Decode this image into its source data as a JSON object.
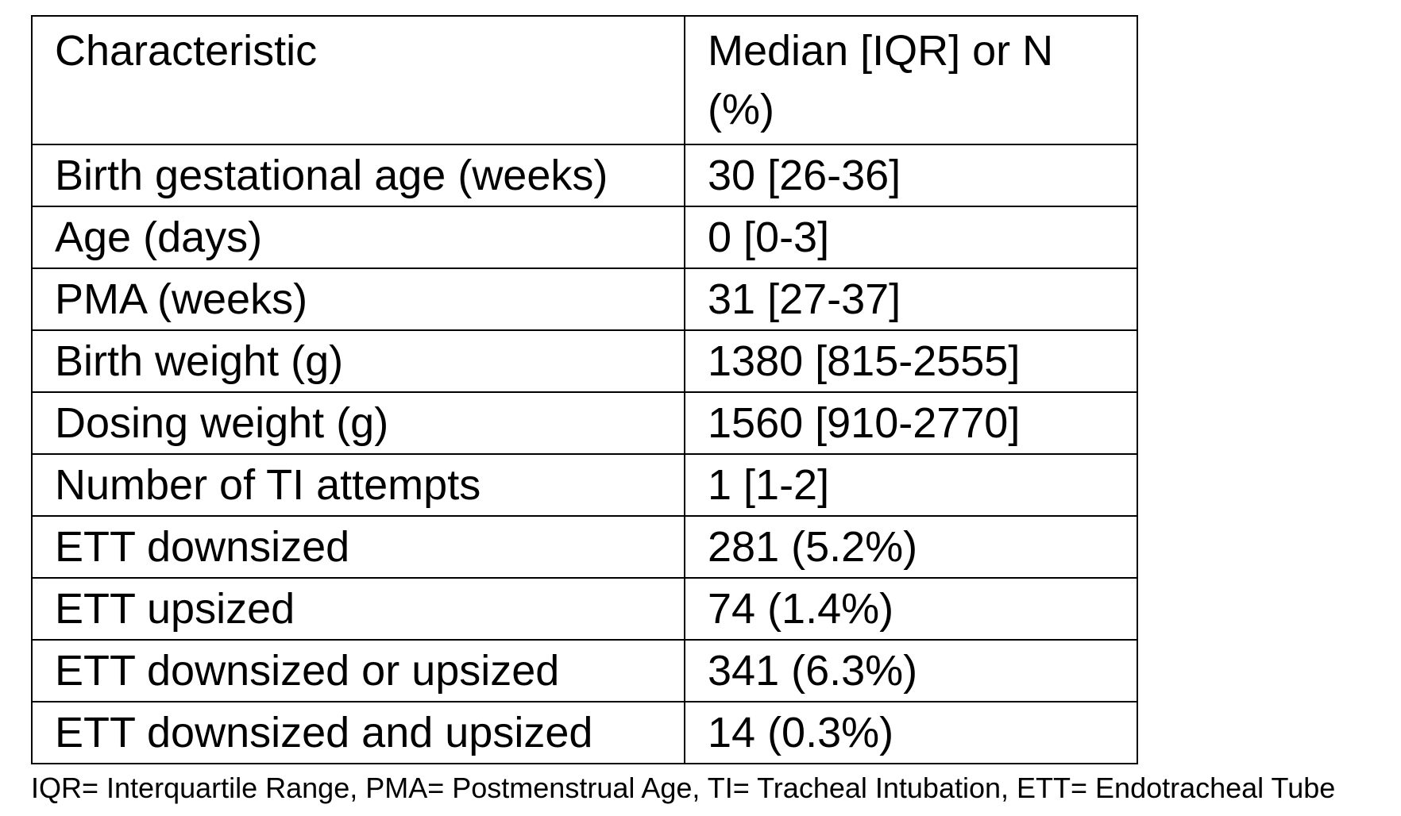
{
  "table": {
    "headers": [
      "Characteristic",
      "Median [IQR] or N (%)"
    ],
    "rows": [
      [
        "Birth gestational age (weeks)",
        "30 [26-36]"
      ],
      [
        "Age (days)",
        "0 [0-3]"
      ],
      [
        "PMA (weeks)",
        "31 [27-37]"
      ],
      [
        "Birth weight (g)",
        "1380 [815-2555]"
      ],
      [
        "Dosing weight (g)",
        "1560 [910-2770]"
      ],
      [
        "Number of TI attempts",
        "1 [1-2]"
      ],
      [
        "ETT downsized",
        "281 (5.2%)"
      ],
      [
        "ETT upsized",
        "74 (1.4%)"
      ],
      [
        "ETT downsized or upsized",
        "341 (6.3%)"
      ],
      [
        "ETT downsized and upsized",
        "14 (0.3%)"
      ]
    ]
  },
  "footnote": "IQR= Interquartile Range, PMA= Postmenstrual Age, TI= Tracheal Intubation, ETT= Endotracheal Tube"
}
